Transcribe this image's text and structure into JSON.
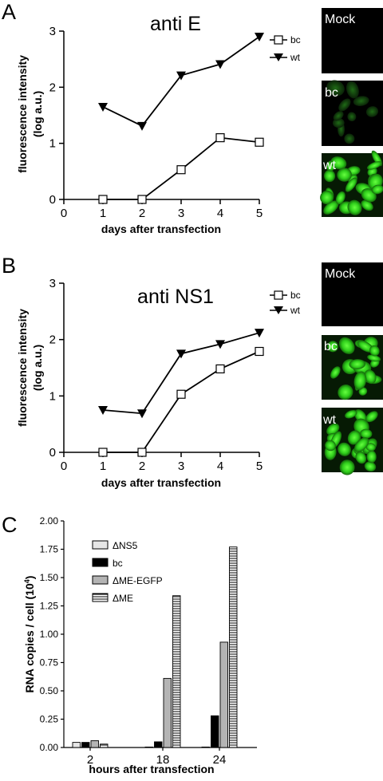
{
  "panels": [
    {
      "label": "A"
    },
    {
      "label": "B"
    },
    {
      "label": "C"
    }
  ],
  "chart_data": [
    {
      "type": "line",
      "title": "anti E",
      "xlabel": "days after transfection",
      "ylabel_line1": "fluorescence intensity",
      "ylabel_line2": "(log a.u.)",
      "xlim": [
        0,
        5
      ],
      "ylim": [
        0,
        3
      ],
      "x_ticks": [
        "0",
        "1",
        "2",
        "3",
        "4",
        "5"
      ],
      "y_ticks": [
        "0",
        "1",
        "2",
        "3"
      ],
      "legend_position": "top-right",
      "series": [
        {
          "name": "bc",
          "marker": "open-square",
          "x": [
            1,
            2,
            3,
            4,
            5
          ],
          "values": [
            0.0,
            0.0,
            0.53,
            1.1,
            1.02
          ]
        },
        {
          "name": "wt",
          "marker": "filled-triangle-down",
          "x": [
            1,
            2,
            3,
            4,
            5
          ],
          "values": [
            1.65,
            1.31,
            2.21,
            2.41,
            2.9
          ]
        }
      ]
    },
    {
      "type": "line",
      "title": "anti NS1",
      "xlabel": "days after transfection",
      "ylabel_line1": "fluorescence intensity",
      "ylabel_line2": "(log a.u.)",
      "xlim": [
        0,
        5
      ],
      "ylim": [
        0,
        3
      ],
      "x_ticks": [
        "0",
        "1",
        "2",
        "3",
        "4",
        "5"
      ],
      "y_ticks": [
        "0",
        "1",
        "2",
        "3"
      ],
      "legend_position": "top-right",
      "series": [
        {
          "name": "bc",
          "marker": "open-square",
          "x": [
            1,
            2,
            3,
            4,
            5
          ],
          "values": [
            0.0,
            0.0,
            1.03,
            1.48,
            1.79
          ]
        },
        {
          "name": "wt",
          "marker": "filled-triangle-down",
          "x": [
            1,
            2,
            3,
            4,
            5
          ],
          "values": [
            0.75,
            0.69,
            1.75,
            1.92,
            2.12
          ]
        }
      ]
    },
    {
      "type": "bar",
      "xlabel": "hours after transfection",
      "ylabel": "RNA copies / cell (10",
      "ylabel_sup": "4",
      "ylabel_end": ")",
      "categories": [
        "2",
        "18",
        "24"
      ],
      "ylim": [
        0,
        2.0
      ],
      "y_ticks": [
        "0.00",
        "0.25",
        "0.50",
        "0.75",
        "1.00",
        "1.25",
        "1.50",
        "1.75",
        "2.00"
      ],
      "legend_position": "top-left",
      "series": [
        {
          "name": "ΔNS5",
          "fill": "#e6e6e6",
          "pattern": "solid",
          "values": [
            0.045,
            0.0,
            0.0
          ]
        },
        {
          "name": "bc",
          "fill": "#000000",
          "pattern": "solid",
          "values": [
            0.045,
            0.05,
            0.28
          ]
        },
        {
          "name": "ΔME-EGFP",
          "fill": "#b4b4b4",
          "pattern": "solid",
          "values": [
            0.06,
            0.61,
            0.93
          ]
        },
        {
          "name": "ΔME",
          "fill": "#ffffff",
          "pattern": "horizontal-stripes",
          "values": [
            0.03,
            1.34,
            1.77
          ]
        }
      ]
    }
  ],
  "micrographs": [
    {
      "labels": [
        "Mock",
        "bc",
        "wt"
      ],
      "intensity": [
        "none",
        "low",
        "high"
      ]
    },
    {
      "labels": [
        "Mock",
        "bc",
        "wt"
      ],
      "intensity": [
        "none",
        "high",
        "high"
      ]
    }
  ],
  "colors": {
    "green": "#2ecc1a",
    "black": "#000000"
  }
}
